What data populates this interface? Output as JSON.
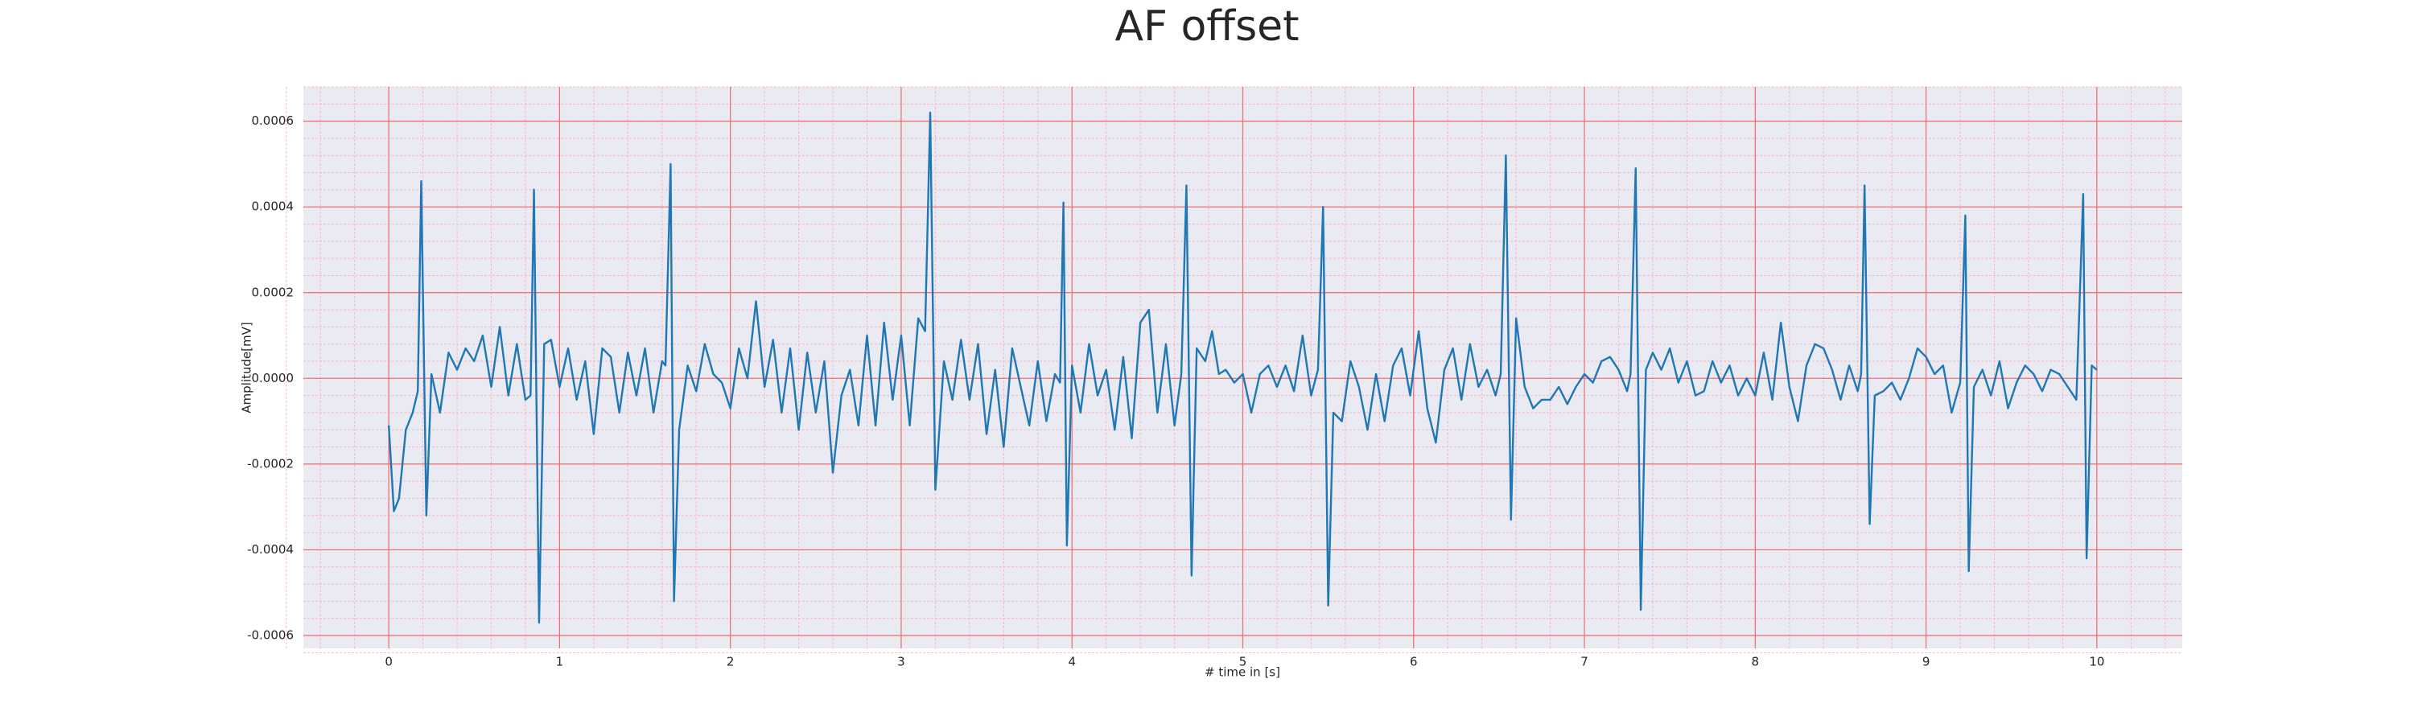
{
  "chart_data": {
    "type": "line",
    "title": "AF offset",
    "xlabel": "# time in [s]",
    "ylabel": "Amplitude[mV]",
    "color": "#1f77b4",
    "grid": true,
    "minor_grid": {
      "divisions": 5
    },
    "xlim": [
      -0.5,
      10.5
    ],
    "ylim": [
      -0.00063,
      0.00068
    ],
    "xticks": [
      0,
      1,
      2,
      3,
      4,
      5,
      6,
      7,
      8,
      9,
      10
    ],
    "yticks": [
      -0.0006,
      -0.0004,
      -0.0002,
      {
        "value": 0,
        "label": "0.0000"
      },
      0.0002,
      0.0004,
      0.0006
    ],
    "x": [
      0.0,
      0.03,
      0.06,
      0.1,
      0.14,
      0.17,
      0.19,
      0.22,
      0.25,
      0.3,
      0.35,
      0.4,
      0.45,
      0.5,
      0.55,
      0.6,
      0.65,
      0.7,
      0.75,
      0.8,
      0.83,
      0.85,
      0.88,
      0.91,
      0.95,
      1.0,
      1.05,
      1.1,
      1.15,
      1.2,
      1.25,
      1.3,
      1.35,
      1.4,
      1.45,
      1.5,
      1.55,
      1.6,
      1.62,
      1.65,
      1.67,
      1.7,
      1.75,
      1.8,
      1.85,
      1.9,
      1.95,
      2.0,
      2.05,
      2.1,
      2.15,
      2.2,
      2.25,
      2.3,
      2.35,
      2.4,
      2.45,
      2.5,
      2.55,
      2.6,
      2.65,
      2.7,
      2.75,
      2.8,
      2.85,
      2.9,
      2.95,
      3.0,
      3.05,
      3.1,
      3.14,
      3.17,
      3.2,
      3.25,
      3.3,
      3.35,
      3.4,
      3.45,
      3.5,
      3.55,
      3.6,
      3.65,
      3.7,
      3.75,
      3.8,
      3.85,
      3.9,
      3.93,
      3.95,
      3.97,
      4.0,
      4.05,
      4.1,
      4.15,
      4.2,
      4.25,
      4.3,
      4.35,
      4.4,
      4.45,
      4.5,
      4.55,
      4.6,
      4.64,
      4.67,
      4.7,
      4.73,
      4.78,
      4.82,
      4.86,
      4.9,
      4.95,
      5.0,
      5.05,
      5.1,
      5.15,
      5.2,
      5.25,
      5.3,
      5.35,
      5.4,
      5.44,
      5.47,
      5.5,
      5.53,
      5.58,
      5.63,
      5.68,
      5.73,
      5.78,
      5.83,
      5.88,
      5.93,
      5.98,
      6.03,
      6.08,
      6.13,
      6.18,
      6.23,
      6.28,
      6.33,
      6.38,
      6.43,
      6.48,
      6.51,
      6.54,
      6.57,
      6.6,
      6.65,
      6.7,
      6.75,
      6.8,
      6.85,
      6.9,
      6.95,
      7.0,
      7.05,
      7.1,
      7.15,
      7.2,
      7.25,
      7.27,
      7.3,
      7.33,
      7.36,
      7.4,
      7.45,
      7.5,
      7.55,
      7.6,
      7.65,
      7.7,
      7.75,
      7.8,
      7.85,
      7.9,
      7.95,
      8.0,
      8.05,
      8.1,
      8.15,
      8.2,
      8.25,
      8.3,
      8.35,
      8.4,
      8.45,
      8.5,
      8.55,
      8.6,
      8.62,
      8.64,
      8.67,
      8.7,
      8.75,
      8.8,
      8.85,
      8.9,
      8.95,
      9.0,
      9.05,
      9.1,
      9.15,
      9.2,
      9.23,
      9.25,
      9.28,
      9.33,
      9.38,
      9.43,
      9.48,
      9.53,
      9.58,
      9.63,
      9.68,
      9.73,
      9.78,
      9.83,
      9.88,
      9.92,
      9.94,
      9.97,
      10.0
    ],
    "values": [
      -0.00011,
      -0.00031,
      -0.00028,
      -0.00012,
      -8e-05,
      -3e-05,
      0.00046,
      -0.00032,
      1e-05,
      -8e-05,
      6e-05,
      2e-05,
      7e-05,
      4e-05,
      0.0001,
      -2e-05,
      0.00012,
      -4e-05,
      8e-05,
      -5e-05,
      -4e-05,
      0.00044,
      -0.00057,
      8e-05,
      9e-05,
      -2e-05,
      7e-05,
      -5e-05,
      4e-05,
      -0.00013,
      7e-05,
      5e-05,
      -8e-05,
      6e-05,
      -4e-05,
      7e-05,
      -8e-05,
      4e-05,
      3e-05,
      0.0005,
      -0.00052,
      -0.00012,
      3e-05,
      -3e-05,
      8e-05,
      1e-05,
      -1e-05,
      -7e-05,
      7e-05,
      0.0,
      0.00018,
      -2e-05,
      9e-05,
      -8e-05,
      7e-05,
      -0.00012,
      6e-05,
      -8e-05,
      4e-05,
      -0.00022,
      -4e-05,
      2e-05,
      -0.00011,
      0.0001,
      -0.00011,
      0.00013,
      -5e-05,
      0.0001,
      -0.00011,
      0.00014,
      0.00011,
      0.00062,
      -0.00026,
      4e-05,
      -5e-05,
      9e-05,
      -5e-05,
      8e-05,
      -0.00013,
      2e-05,
      -0.00016,
      7e-05,
      -2e-05,
      -0.00011,
      4e-05,
      -0.0001,
      1e-05,
      -1e-05,
      0.00041,
      -0.00039,
      3e-05,
      -8e-05,
      8e-05,
      -4e-05,
      2e-05,
      -0.00012,
      5e-05,
      -0.00014,
      0.00013,
      0.00016,
      -8e-05,
      8e-05,
      -0.00011,
      1e-05,
      0.00045,
      -0.00046,
      7e-05,
      4e-05,
      0.00011,
      1e-05,
      2e-05,
      -1e-05,
      1e-05,
      -8e-05,
      1e-05,
      3e-05,
      -2e-05,
      3e-05,
      -3e-05,
      0.0001,
      -4e-05,
      2e-05,
      0.0004,
      -0.00053,
      -8e-05,
      -0.0001,
      4e-05,
      -2e-05,
      -0.00012,
      1e-05,
      -0.0001,
      3e-05,
      7e-05,
      -4e-05,
      0.00011,
      -7e-05,
      -0.00015,
      2e-05,
      7e-05,
      -5e-05,
      8e-05,
      -2e-05,
      2e-05,
      -4e-05,
      1e-05,
      0.00052,
      -0.00033,
      0.00014,
      -2e-05,
      -7e-05,
      -5e-05,
      -5e-05,
      -2e-05,
      -6e-05,
      -2e-05,
      1e-05,
      -1e-05,
      4e-05,
      5e-05,
      2e-05,
      -3e-05,
      1e-05,
      0.00049,
      -0.00054,
      2e-05,
      6e-05,
      2e-05,
      7e-05,
      -1e-05,
      4e-05,
      -4e-05,
      -3e-05,
      4e-05,
      -1e-05,
      3e-05,
      -4e-05,
      0.0,
      -4e-05,
      6e-05,
      -5e-05,
      0.00013,
      -2e-05,
      -0.0001,
      3e-05,
      8e-05,
      7e-05,
      2e-05,
      -5e-05,
      3e-05,
      -3e-05,
      1e-05,
      0.00045,
      -0.00034,
      -4e-05,
      -3e-05,
      -1e-05,
      -5e-05,
      0.0,
      7e-05,
      5e-05,
      1e-05,
      3e-05,
      -8e-05,
      -1e-05,
      0.00038,
      -0.00045,
      -2e-05,
      2e-05,
      -4e-05,
      4e-05,
      -7e-05,
      -1e-05,
      3e-05,
      1e-05,
      -3e-05,
      2e-05,
      1e-05,
      -2e-05,
      -5e-05,
      0.00043,
      -0.00042,
      3e-05,
      2e-05
    ]
  }
}
